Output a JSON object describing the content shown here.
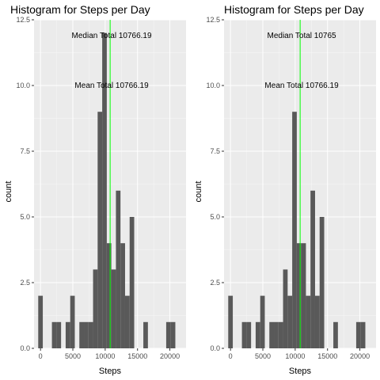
{
  "colors": {
    "panel_background": "#ebebeb",
    "grid_major": "#ffffff",
    "bar_fill": "#595959",
    "vline": "#00ff00"
  },
  "chart_data": [
    {
      "type": "bar",
      "title": "Histogram for Steps per Day",
      "xlabel": "Steps",
      "ylabel": "count",
      "xlim": [
        -1000,
        22500
      ],
      "ylim": [
        0,
        12.5
      ],
      "x_ticks": [
        0,
        5000,
        10000,
        15000,
        20000
      ],
      "y_ticks": [
        0.0,
        2.5,
        5.0,
        7.5,
        10.0,
        12.5
      ],
      "x_tick_labels": [
        "0",
        "5000",
        "10000",
        "15000",
        "20000"
      ],
      "y_tick_labels": [
        "0.0",
        "2.5",
        "5.0",
        "7.5",
        "10.0",
        "12.5"
      ],
      "grid": true,
      "bin_width": 706.6,
      "bin_centers": [
        0,
        706.6,
        1413.2,
        2119.8,
        2826.4,
        3533,
        4239.6,
        4946.2,
        5652.8,
        6359.4,
        7066,
        7772.6,
        8479.2,
        9185.8,
        9892.4,
        10599,
        11305.6,
        12012.2,
        12718.8,
        13425.4,
        14132,
        14838.6,
        15545.2,
        16251.8,
        16958.4,
        17665,
        18371.6,
        19078.2,
        19784.8,
        20491.4,
        21198
      ],
      "counts": [
        2,
        0,
        0,
        1,
        1,
        0,
        1,
        2,
        0,
        1,
        1,
        1,
        3,
        9,
        12,
        4,
        3,
        6,
        4,
        2,
        5,
        0,
        0,
        1,
        0,
        0,
        0,
        0,
        1,
        1,
        0
      ],
      "vline_x": 10766.19,
      "annotations": [
        {
          "text": "Median Total 10766.19",
          "x": 11000,
          "y": 11.9
        },
        {
          "text": "Mean Total 10766.19",
          "x": 11000,
          "y": 10.0
        }
      ]
    },
    {
      "type": "bar",
      "title": "Histogram for Steps per Day",
      "xlabel": "Steps",
      "ylabel": "count",
      "xlim": [
        -1000,
        22500
      ],
      "ylim": [
        0,
        12.5
      ],
      "x_ticks": [
        0,
        5000,
        10000,
        15000,
        20000
      ],
      "y_ticks": [
        0.0,
        2.5,
        5.0,
        7.5,
        10.0,
        12.5
      ],
      "x_tick_labels": [
        "0",
        "5000",
        "10000",
        "15000",
        "20000"
      ],
      "y_tick_labels": [
        "0.0",
        "2.5",
        "5.0",
        "7.5",
        "10.0",
        "12.5"
      ],
      "grid": true,
      "bin_width": 706.6,
      "bin_centers": [
        0,
        706.6,
        1413.2,
        2119.8,
        2826.4,
        3533,
        4239.6,
        4946.2,
        5652.8,
        6359.4,
        7066,
        7772.6,
        8479.2,
        9185.8,
        9892.4,
        10599,
        11305.6,
        12012.2,
        12718.8,
        13425.4,
        14132,
        14838.6,
        15545.2,
        16251.8,
        16958.4,
        17665,
        18371.6,
        19078.2,
        19784.8,
        20491.4,
        21198
      ],
      "counts": [
        2,
        0,
        0,
        1,
        1,
        0,
        1,
        2,
        0,
        1,
        1,
        1,
        3,
        2,
        9,
        4,
        4,
        2,
        6,
        2,
        5,
        0,
        0,
        1,
        0,
        0,
        0,
        0,
        1,
        1,
        0
      ],
      "vline_x": 10766.19,
      "annotations": [
        {
          "text": "Median Total 10765",
          "x": 11000,
          "y": 11.9
        },
        {
          "text": "Mean Total 10766.19",
          "x": 11000,
          "y": 10.0
        }
      ]
    }
  ]
}
